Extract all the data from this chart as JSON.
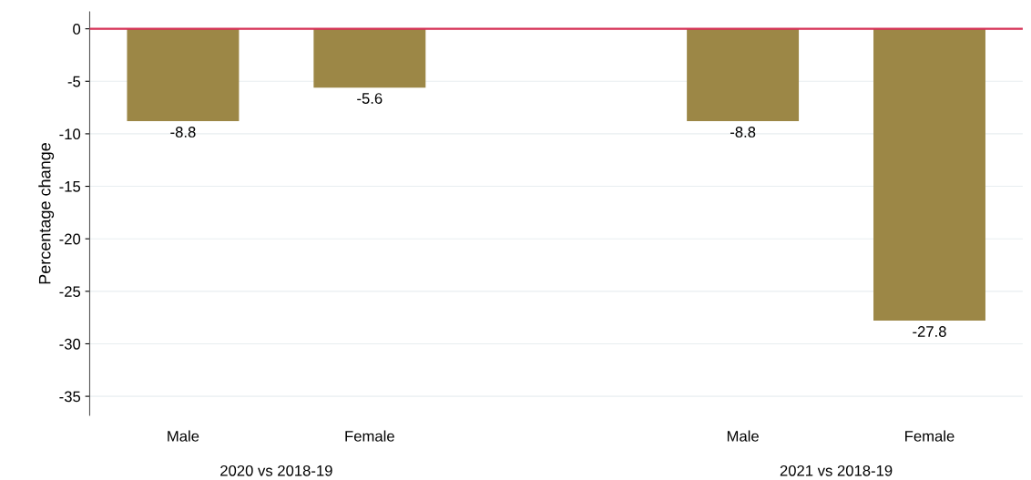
{
  "chart_data": {
    "type": "bar",
    "ylabel": "Percentage change",
    "categories": [
      "Male",
      "Female",
      null,
      "Male",
      "Female"
    ],
    "values": [
      -8.8,
      -5.6,
      null,
      -8.8,
      -27.8
    ],
    "color": "#9c8746",
    "ylim": [
      -36.8,
      1.6
    ],
    "yticks": [
      0,
      -5,
      -10,
      -15,
      -20,
      -25,
      -30,
      -35
    ],
    "grid": "y",
    "data_labels": true,
    "ref_lines": [
      {
        "axis": "y",
        "value": 0,
        "color": "#d62f55"
      }
    ],
    "annotations": [
      "2020 vs 2018-19",
      "2021 vs 2018-19"
    ]
  }
}
